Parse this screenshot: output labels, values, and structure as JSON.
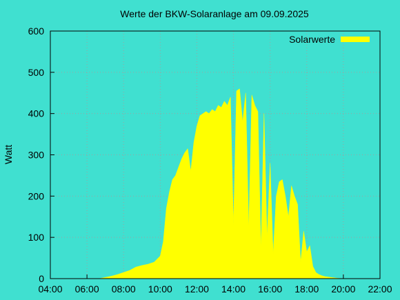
{
  "chart_data": {
    "type": "area",
    "title": "Werte der BKW-Solaranlage am 09.09.2025",
    "y_label": "Watt",
    "x": [
      "06:40",
      "07:00",
      "07:20",
      "07:40",
      "08:00",
      "08:20",
      "08:40",
      "09:00",
      "09:20",
      "09:40",
      "10:00",
      "10:10",
      "10:20",
      "10:30",
      "10:40",
      "10:50",
      "11:00",
      "11:10",
      "11:20",
      "11:30",
      "11:40",
      "11:50",
      "12:00",
      "12:10",
      "12:20",
      "12:30",
      "12:40",
      "12:50",
      "13:00",
      "13:10",
      "13:20",
      "13:30",
      "13:40",
      "13:50",
      "14:00",
      "14:10",
      "14:20",
      "14:30",
      "14:40",
      "14:50",
      "15:00",
      "15:10",
      "15:20",
      "15:30",
      "15:40",
      "15:50",
      "16:00",
      "16:10",
      "16:20",
      "16:30",
      "16:40",
      "16:50",
      "17:00",
      "17:10",
      "17:20",
      "17:30",
      "17:40",
      "17:50",
      "18:00",
      "18:10",
      "18:20",
      "18:30",
      "18:40",
      "18:50",
      "19:00",
      "19:20",
      "19:40",
      "20:00"
    ],
    "series": [
      {
        "name": "Solarwerte",
        "color": "#ffff00",
        "values": [
          0,
          3,
          6,
          10,
          15,
          20,
          28,
          32,
          35,
          40,
          55,
          90,
          170,
          210,
          240,
          250,
          270,
          290,
          305,
          315,
          260,
          330,
          370,
          395,
          400,
          405,
          400,
          410,
          405,
          420,
          415,
          430,
          420,
          440,
          130,
          455,
          460,
          380,
          450,
          120,
          445,
          420,
          405,
          70,
          400,
          100,
          280,
          60,
          200,
          235,
          240,
          200,
          150,
          225,
          200,
          180,
          40,
          115,
          65,
          80,
          30,
          15,
          10,
          7,
          5,
          3,
          1,
          0
        ]
      }
    ],
    "xlim": [
      "04:00",
      "22:00"
    ],
    "xticks": [
      "04:00",
      "06:00",
      "08:00",
      "10:00",
      "12:00",
      "14:00",
      "16:00",
      "18:00",
      "20:00",
      "22:00"
    ],
    "ylim": [
      0,
      600
    ],
    "yticks": [
      0,
      100,
      200,
      300,
      400,
      500,
      600
    ],
    "grid": true,
    "legend": "top-right"
  }
}
